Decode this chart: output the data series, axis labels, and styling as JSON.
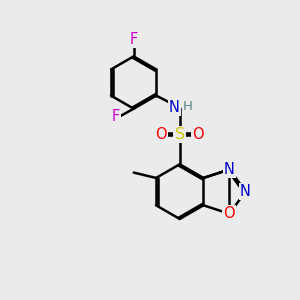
{
  "bg": "#ebebeb",
  "bc": "#000000",
  "bw": 1.8,
  "dbo": 0.055,
  "colors": {
    "N": "#0000cc",
    "O": "#ff0000",
    "S": "#cccc00",
    "F": "#cc00cc",
    "H": "#558888",
    "C": "#000000"
  },
  "fs": 10.5
}
